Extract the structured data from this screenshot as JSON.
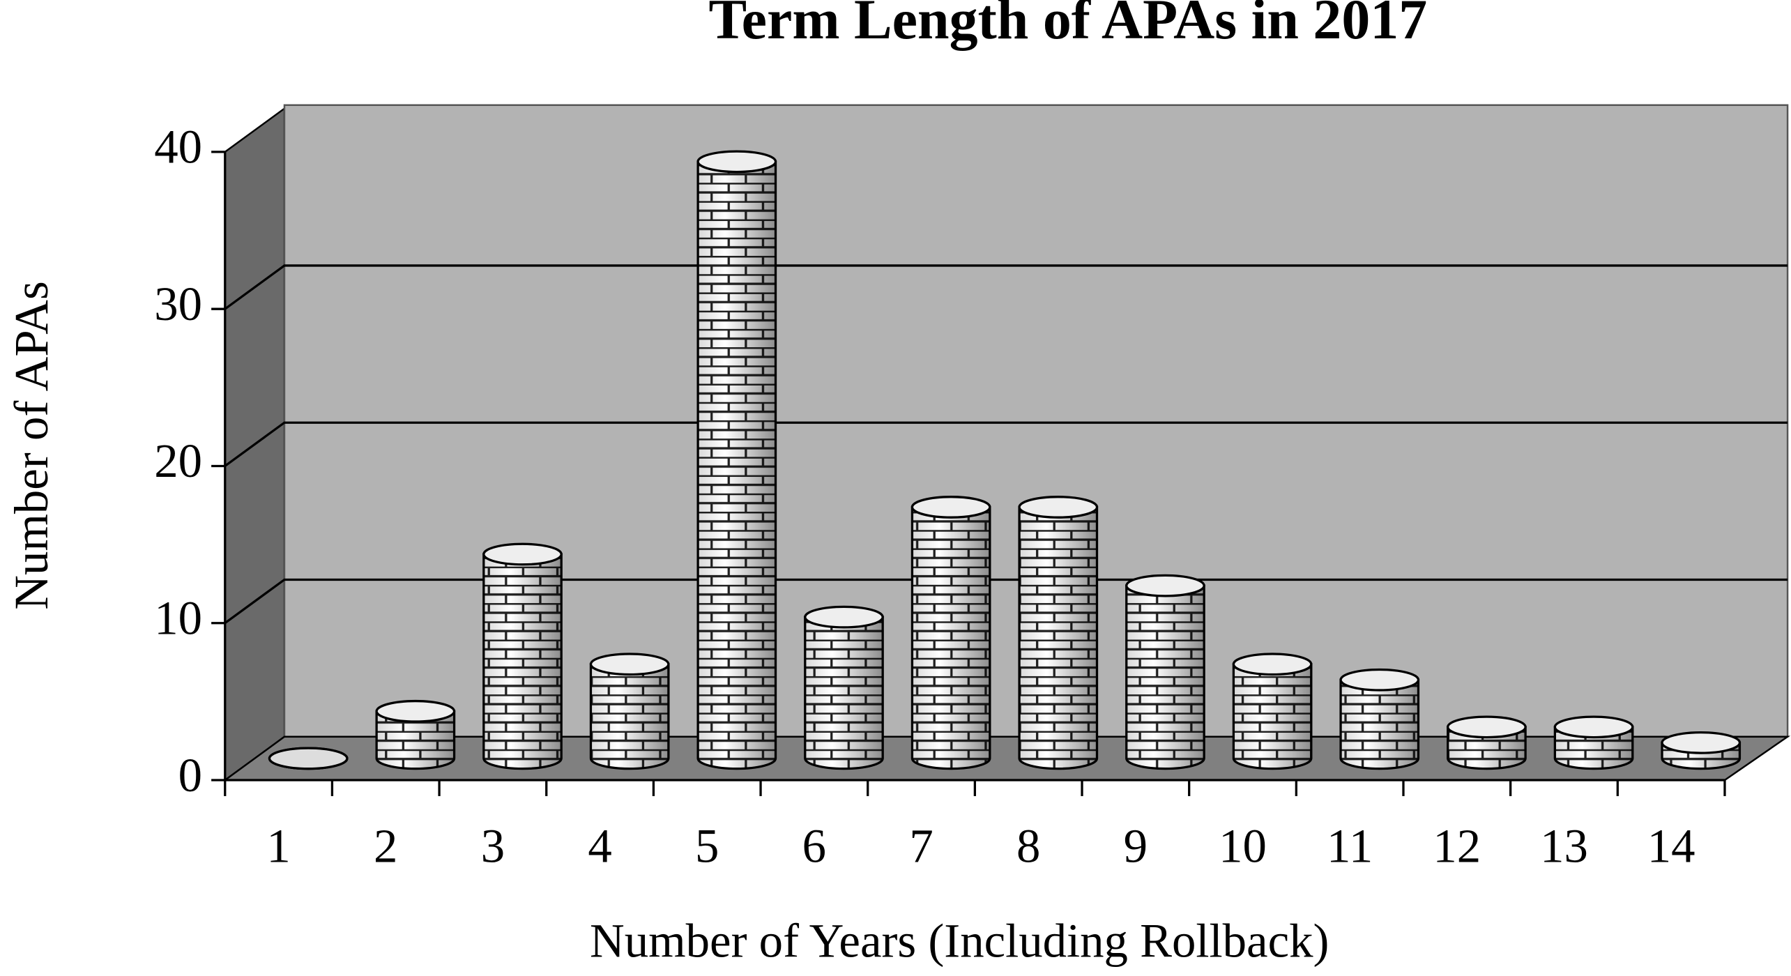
{
  "chart_data": {
    "type": "bar3d",
    "title": "Term Length of APAs in 2017",
    "x_label": "Number of Years (Including Rollback)",
    "y_label": "Number of APAs",
    "categories": [
      "1",
      "2",
      "3",
      "4",
      "5",
      "6",
      "7",
      "8",
      "9",
      "10",
      "11",
      "12",
      "13",
      "14"
    ],
    "values": [
      0,
      3,
      13,
      6,
      38,
      9,
      16,
      16,
      11,
      6,
      5,
      2,
      2,
      1
    ],
    "ylim": [
      0,
      40
    ],
    "yticks": [
      0,
      10,
      20,
      30,
      40
    ],
    "grid": true,
    "color": "#ffffff"
  }
}
